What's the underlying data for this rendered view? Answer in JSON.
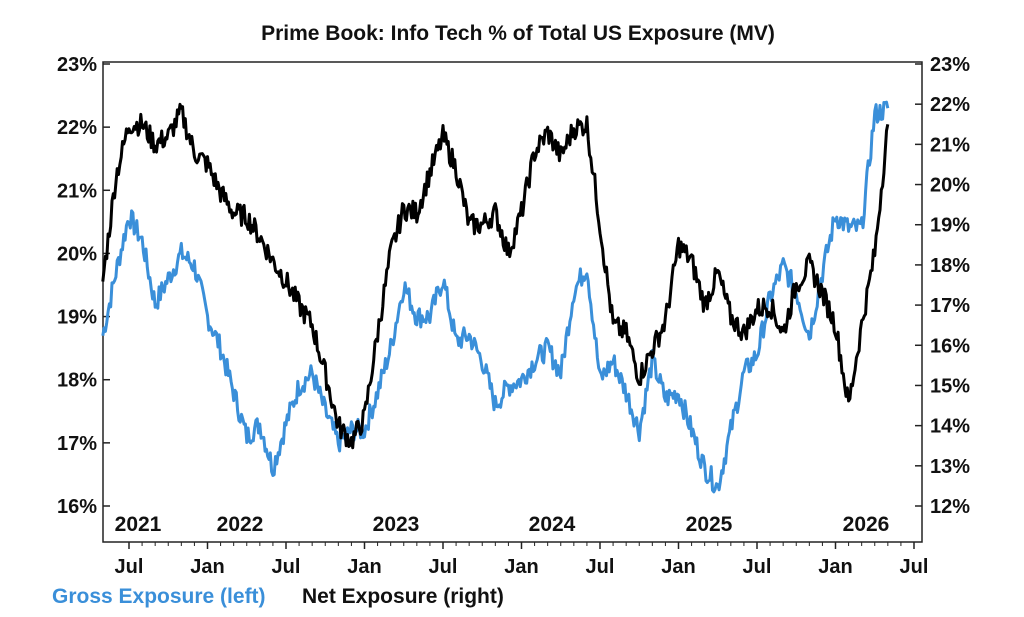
{
  "chart_data": {
    "type": "line",
    "title": "Prime Book: Info Tech % of Total US Exposure (MV)",
    "x_tick_labels": [
      "Jul",
      "Jan",
      "Jul",
      "Jan",
      "Jul",
      "Jan",
      "Jul",
      "Jan",
      "Jul",
      "Jan",
      "Jul"
    ],
    "year_labels": [
      "2021",
      "2022",
      "2023",
      "2024",
      "2025",
      "2026"
    ],
    "left_axis": {
      "ticks": [
        "23%",
        "22%",
        "21%",
        "20%",
        "19%",
        "18%",
        "17%",
        "16%"
      ],
      "range": [
        16,
        23
      ]
    },
    "right_axis": {
      "ticks": [
        "23%",
        "22%",
        "21%",
        "20%",
        "19%",
        "18%",
        "17%",
        "16%",
        "15%",
        "14%",
        "13%",
        "12%"
      ],
      "range": [
        12,
        23
      ]
    },
    "colors": {
      "gross": "#3a8fd9",
      "net": "#000000"
    },
    "series": [
      {
        "name": "Gross Exposure (left)",
        "axis": "left",
        "x": [
          "2021-05",
          "2021-06",
          "2021-07",
          "2021-08",
          "2021-09",
          "2021-10",
          "2021-11",
          "2021-12",
          "2022-01",
          "2022-02",
          "2022-03",
          "2022-04",
          "2022-05",
          "2022-06",
          "2022-07",
          "2022-08",
          "2022-09",
          "2022-10",
          "2022-11",
          "2022-12",
          "2023-01",
          "2023-02",
          "2023-03",
          "2023-04",
          "2023-05",
          "2023-06",
          "2023-07",
          "2023-08",
          "2023-09",
          "2023-10",
          "2023-11",
          "2023-12",
          "2024-01",
          "2024-02",
          "2024-03",
          "2024-04",
          "2024-05",
          "2024-06",
          "2024-07",
          "2024-08",
          "2024-09",
          "2024-10",
          "2024-11",
          "2024-12",
          "2025-01",
          "2025-02",
          "2025-03",
          "2025-04",
          "2025-05",
          "2025-06",
          "2025-07",
          "2025-08",
          "2025-09",
          "2025-10",
          "2025-11",
          "2025-12",
          "2026-01",
          "2026-02",
          "2026-03",
          "2026-04",
          "2026-05"
        ],
        "values": [
          18.7,
          19.7,
          20.6,
          20.2,
          19.2,
          19.6,
          20.0,
          19.8,
          19.0,
          18.5,
          17.8,
          17.1,
          17.3,
          16.6,
          17.3,
          17.9,
          18.1,
          17.5,
          17.0,
          17.2,
          17.2,
          17.8,
          18.5,
          19.5,
          19.0,
          19.0,
          19.6,
          18.6,
          18.7,
          18.3,
          17.6,
          17.9,
          18.0,
          18.3,
          18.5,
          18.1,
          19.4,
          19.8,
          18.0,
          18.3,
          17.8,
          17.2,
          18.3,
          17.7,
          17.8,
          17.2,
          16.6,
          16.3,
          17.2,
          18.1,
          18.4,
          19.3,
          19.8,
          19.4,
          18.7,
          19.7,
          20.6,
          20.4,
          20.4,
          22.2,
          22.3
        ]
      },
      {
        "name": "Net Exposure (right)",
        "axis": "right",
        "x": [
          "2021-05",
          "2021-06",
          "2021-07",
          "2021-08",
          "2021-09",
          "2021-10",
          "2021-11",
          "2021-12",
          "2022-01",
          "2022-02",
          "2022-03",
          "2022-04",
          "2022-05",
          "2022-06",
          "2022-07",
          "2022-08",
          "2022-09",
          "2022-10",
          "2022-11",
          "2022-12",
          "2023-01",
          "2023-02",
          "2023-03",
          "2023-04",
          "2023-05",
          "2023-06",
          "2023-07",
          "2023-08",
          "2023-09",
          "2023-10",
          "2023-11",
          "2023-12",
          "2024-01",
          "2024-02",
          "2024-03",
          "2024-04",
          "2024-05",
          "2024-06",
          "2024-07",
          "2024-08",
          "2024-09",
          "2024-10",
          "2024-11",
          "2024-12",
          "2025-01",
          "2025-02",
          "2025-03",
          "2025-04",
          "2025-05",
          "2025-06",
          "2025-07",
          "2025-08",
          "2025-09",
          "2025-10",
          "2025-11",
          "2025-12",
          "2026-01",
          "2026-02",
          "2026-03",
          "2026-04",
          "2026-05"
        ],
        "values": [
          17.6,
          20.2,
          21.5,
          21.5,
          21.0,
          21.2,
          21.8,
          20.8,
          20.5,
          19.8,
          19.3,
          19.2,
          18.7,
          18.1,
          17.6,
          17.0,
          16.5,
          15.3,
          14.0,
          13.6,
          14.2,
          16.3,
          18.3,
          19.4,
          19.3,
          20.3,
          21.2,
          20.4,
          19.0,
          19.0,
          19.3,
          18.3,
          19.3,
          20.8,
          21.3,
          20.7,
          21.4,
          21.5,
          19.0,
          16.5,
          16.3,
          15.2,
          15.9,
          16.6,
          18.5,
          18.1,
          17.0,
          17.8,
          16.7,
          16.3,
          16.9,
          17.0,
          16.3,
          17.5,
          18.0,
          17.3,
          16.5,
          14.5,
          16.5,
          18.3,
          21.5
        ]
      }
    ],
    "legend": [
      {
        "label": "Gross Exposure (left)",
        "color": "#3a8fd9"
      },
      {
        "label": "Net Exposure (right)",
        "color": "#111111"
      }
    ],
    "grid": false,
    "legend_position": "bottom-left"
  }
}
